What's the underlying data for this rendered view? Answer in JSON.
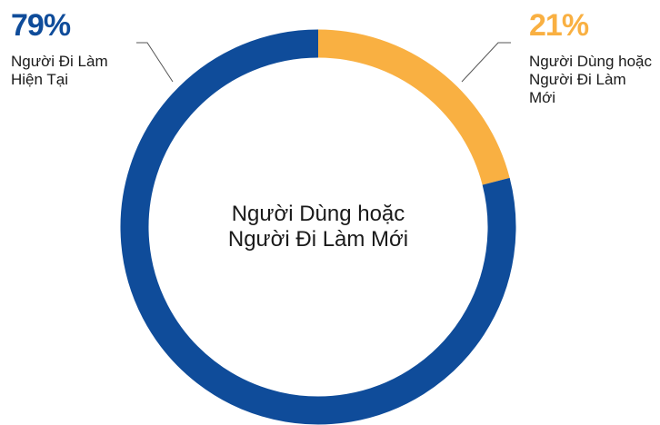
{
  "chart_data": {
    "type": "donut",
    "center_text": [
      "Người Dùng hoặc",
      "Người Đi Làm Mới"
    ],
    "categories": [
      "Người Dùng hoặc Người Đi Làm Mới",
      "Người Đi Làm Hiện Tại"
    ],
    "values": [
      21,
      79
    ],
    "value_labels": [
      "21%",
      "79%"
    ],
    "colors": [
      "#f9b042",
      "#0f4c9a"
    ]
  }
}
